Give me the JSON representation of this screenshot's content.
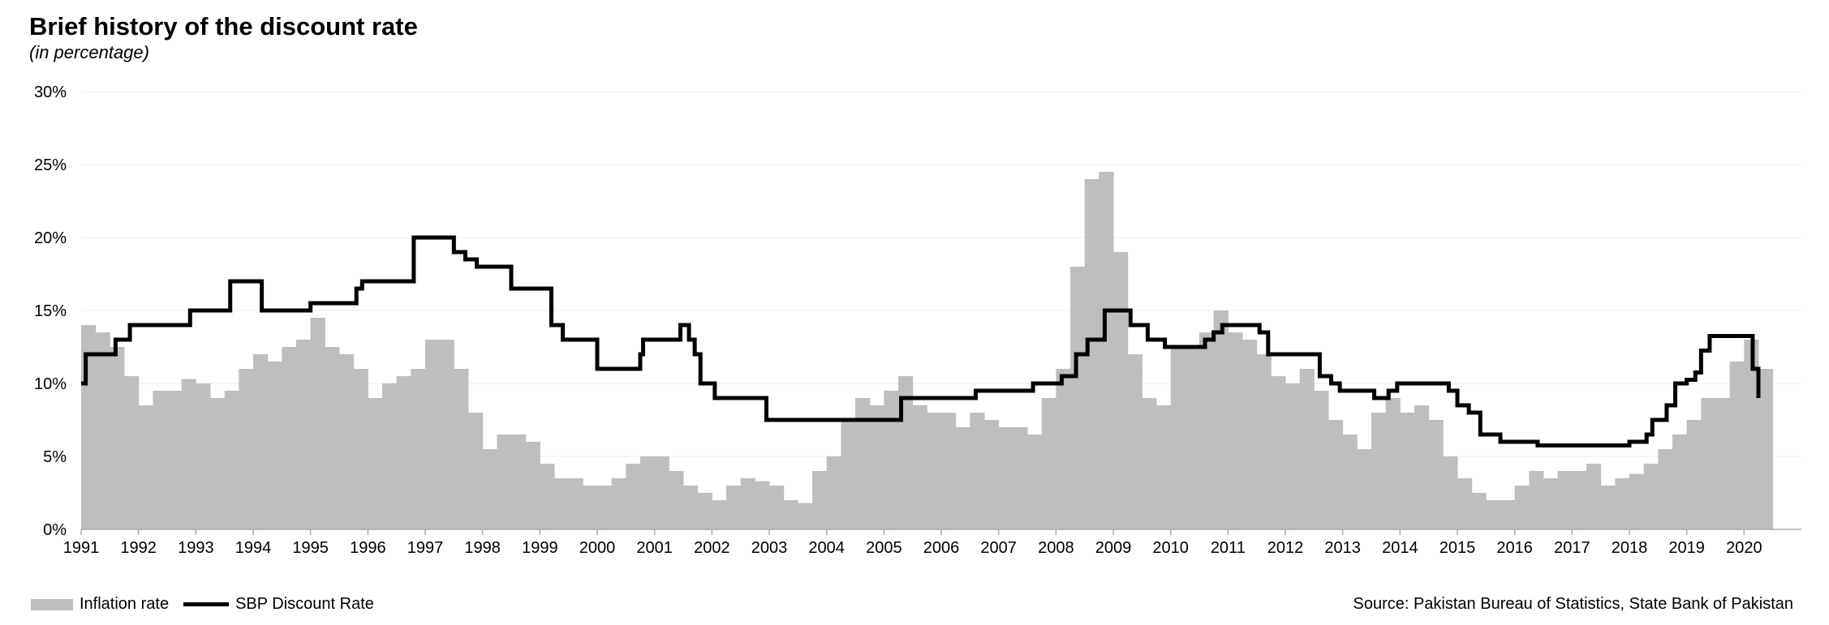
{
  "title": "Brief history of the discount rate",
  "subtitle": "(in percentage)",
  "source": "Source: Pakistan Bureau of Statistics, State Bank of Pakistan",
  "colors": {
    "inflation": "#bfbebe",
    "discount": "#000000",
    "grid": "#eeeeee",
    "axis": "#aaaaaa"
  },
  "chart_data": {
    "type": "bar",
    "xlabel": "",
    "ylabel": "",
    "xlim": [
      1991.0,
      2021.0
    ],
    "ylim": [
      0,
      30
    ],
    "y_ticks": [
      "0%",
      "5%",
      "10%",
      "15%",
      "20%",
      "25%",
      "30%"
    ],
    "x_ticks": [
      "1991",
      "1992",
      "1993",
      "1994",
      "1995",
      "1996",
      "1997",
      "1998",
      "1999",
      "2000",
      "2001",
      "2002",
      "2003",
      "2004",
      "2005",
      "2006",
      "2007",
      "2008",
      "2009",
      "2010",
      "2011",
      "2012",
      "2013",
      "2014",
      "2015",
      "2016",
      "2017",
      "2018",
      "2019",
      "2020"
    ],
    "grid": "horizontal",
    "legend_position": "bottom-left",
    "series": [
      {
        "name": "Inflation rate",
        "kind": "bar",
        "points": [
          [
            1991.0,
            14.0
          ],
          [
            1991.25,
            13.5
          ],
          [
            1991.5,
            12.5
          ],
          [
            1991.75,
            10.5
          ],
          [
            1992.0,
            8.5
          ],
          [
            1992.25,
            9.5
          ],
          [
            1992.5,
            9.5
          ],
          [
            1992.75,
            10.3
          ],
          [
            1993.0,
            10.0
          ],
          [
            1993.25,
            9.0
          ],
          [
            1993.5,
            9.5
          ],
          [
            1993.75,
            11.0
          ],
          [
            1994.0,
            12.0
          ],
          [
            1994.25,
            11.5
          ],
          [
            1994.5,
            12.5
          ],
          [
            1994.75,
            13.0
          ],
          [
            1995.0,
            14.5
          ],
          [
            1995.25,
            12.5
          ],
          [
            1995.5,
            12.0
          ],
          [
            1995.75,
            11.0
          ],
          [
            1996.0,
            9.0
          ],
          [
            1996.25,
            10.0
          ],
          [
            1996.5,
            10.5
          ],
          [
            1996.75,
            11.0
          ],
          [
            1997.0,
            13.0
          ],
          [
            1997.25,
            13.0
          ],
          [
            1997.5,
            11.0
          ],
          [
            1997.75,
            8.0
          ],
          [
            1998.0,
            5.5
          ],
          [
            1998.25,
            6.5
          ],
          [
            1998.5,
            6.5
          ],
          [
            1998.75,
            6.0
          ],
          [
            1999.0,
            4.5
          ],
          [
            1999.25,
            3.5
          ],
          [
            1999.5,
            3.5
          ],
          [
            1999.75,
            3.0
          ],
          [
            2000.0,
            3.0
          ],
          [
            2000.25,
            3.5
          ],
          [
            2000.5,
            4.5
          ],
          [
            2000.75,
            5.0
          ],
          [
            2001.0,
            5.0
          ],
          [
            2001.25,
            4.0
          ],
          [
            2001.5,
            3.0
          ],
          [
            2001.75,
            2.5
          ],
          [
            2002.0,
            2.0
          ],
          [
            2002.25,
            3.0
          ],
          [
            2002.5,
            3.5
          ],
          [
            2002.75,
            3.3
          ],
          [
            2003.0,
            3.0
          ],
          [
            2003.25,
            2.0
          ],
          [
            2003.5,
            1.8
          ],
          [
            2003.75,
            4.0
          ],
          [
            2004.0,
            5.0
          ],
          [
            2004.25,
            7.5
          ],
          [
            2004.5,
            9.0
          ],
          [
            2004.75,
            8.5
          ],
          [
            2005.0,
            9.5
          ],
          [
            2005.25,
            10.5
          ],
          [
            2005.5,
            8.5
          ],
          [
            2005.75,
            8.0
          ],
          [
            2006.0,
            8.0
          ],
          [
            2006.25,
            7.0
          ],
          [
            2006.5,
            8.0
          ],
          [
            2006.75,
            7.5
          ],
          [
            2007.0,
            7.0
          ],
          [
            2007.25,
            7.0
          ],
          [
            2007.5,
            6.5
          ],
          [
            2007.75,
            9.0
          ],
          [
            2008.0,
            11.0
          ],
          [
            2008.25,
            18.0
          ],
          [
            2008.5,
            24.0
          ],
          [
            2008.75,
            24.5
          ],
          [
            2009.0,
            19.0
          ],
          [
            2009.25,
            12.0
          ],
          [
            2009.5,
            9.0
          ],
          [
            2009.75,
            8.5
          ],
          [
            2010.0,
            12.5
          ],
          [
            2010.25,
            12.5
          ],
          [
            2010.5,
            13.5
          ],
          [
            2010.75,
            15.0
          ],
          [
            2011.0,
            13.5
          ],
          [
            2011.25,
            13.0
          ],
          [
            2011.5,
            12.0
          ],
          [
            2011.75,
            10.5
          ],
          [
            2012.0,
            10.0
          ],
          [
            2012.25,
            11.0
          ],
          [
            2012.5,
            9.5
          ],
          [
            2012.75,
            7.5
          ],
          [
            2013.0,
            6.5
          ],
          [
            2013.25,
            5.5
          ],
          [
            2013.5,
            8.0
          ],
          [
            2013.75,
            9.0
          ],
          [
            2014.0,
            8.0
          ],
          [
            2014.25,
            8.5
          ],
          [
            2014.5,
            7.5
          ],
          [
            2014.75,
            5.0
          ],
          [
            2015.0,
            3.5
          ],
          [
            2015.25,
            2.5
          ],
          [
            2015.5,
            2.0
          ],
          [
            2015.75,
            2.0
          ],
          [
            2016.0,
            3.0
          ],
          [
            2016.25,
            4.0
          ],
          [
            2016.5,
            3.5
          ],
          [
            2016.75,
            4.0
          ],
          [
            2017.0,
            4.0
          ],
          [
            2017.25,
            4.5
          ],
          [
            2017.5,
            3.0
          ],
          [
            2017.75,
            3.5
          ],
          [
            2018.0,
            3.8
          ],
          [
            2018.25,
            4.5
          ],
          [
            2018.5,
            5.5
          ],
          [
            2018.75,
            6.5
          ],
          [
            2019.0,
            7.5
          ],
          [
            2019.25,
            9.0
          ],
          [
            2019.5,
            9.0
          ],
          [
            2019.75,
            11.5
          ],
          [
            2020.0,
            13.0
          ],
          [
            2020.25,
            11.0
          ]
        ]
      },
      {
        "name": "SBP Discount Rate",
        "kind": "step-line",
        "points": [
          [
            1991.0,
            10.0
          ],
          [
            1991.08,
            12.0
          ],
          [
            1991.6,
            13.0
          ],
          [
            1991.85,
            14.0
          ],
          [
            1992.9,
            15.0
          ],
          [
            1993.6,
            17.0
          ],
          [
            1994.15,
            15.0
          ],
          [
            1995.0,
            15.5
          ],
          [
            1995.8,
            16.5
          ],
          [
            1995.9,
            17.0
          ],
          [
            1996.8,
            20.0
          ],
          [
            1997.5,
            19.0
          ],
          [
            1997.7,
            18.5
          ],
          [
            1997.9,
            18.0
          ],
          [
            1998.5,
            16.5
          ],
          [
            1999.2,
            14.0
          ],
          [
            1999.4,
            13.0
          ],
          [
            2000.0,
            11.0
          ],
          [
            2000.75,
            12.0
          ],
          [
            2000.8,
            13.0
          ],
          [
            2001.45,
            14.0
          ],
          [
            2001.6,
            13.0
          ],
          [
            2001.7,
            12.0
          ],
          [
            2001.8,
            10.0
          ],
          [
            2002.05,
            9.0
          ],
          [
            2002.95,
            7.5
          ],
          [
            2005.3,
            9.0
          ],
          [
            2006.6,
            9.5
          ],
          [
            2007.6,
            10.0
          ],
          [
            2008.1,
            10.5
          ],
          [
            2008.35,
            12.0
          ],
          [
            2008.55,
            13.0
          ],
          [
            2008.85,
            15.0
          ],
          [
            2009.3,
            14.0
          ],
          [
            2009.6,
            13.0
          ],
          [
            2009.9,
            12.5
          ],
          [
            2010.6,
            13.0
          ],
          [
            2010.75,
            13.5
          ],
          [
            2010.9,
            14.0
          ],
          [
            2011.55,
            13.5
          ],
          [
            2011.7,
            12.0
          ],
          [
            2012.6,
            10.5
          ],
          [
            2012.8,
            10.0
          ],
          [
            2012.95,
            9.5
          ],
          [
            2013.55,
            9.0
          ],
          [
            2013.8,
            9.5
          ],
          [
            2013.95,
            10.0
          ],
          [
            2014.85,
            9.5
          ],
          [
            2015.0,
            8.5
          ],
          [
            2015.2,
            8.0
          ],
          [
            2015.4,
            6.5
          ],
          [
            2015.75,
            6.0
          ],
          [
            2016.4,
            5.75
          ],
          [
            2018.0,
            6.0
          ],
          [
            2018.3,
            6.5
          ],
          [
            2018.4,
            7.5
          ],
          [
            2018.65,
            8.5
          ],
          [
            2018.8,
            10.0
          ],
          [
            2019.0,
            10.25
          ],
          [
            2019.15,
            10.75
          ],
          [
            2019.25,
            12.25
          ],
          [
            2019.4,
            13.25
          ],
          [
            2020.15,
            11.0
          ],
          [
            2020.25,
            9.0
          ]
        ]
      }
    ]
  }
}
